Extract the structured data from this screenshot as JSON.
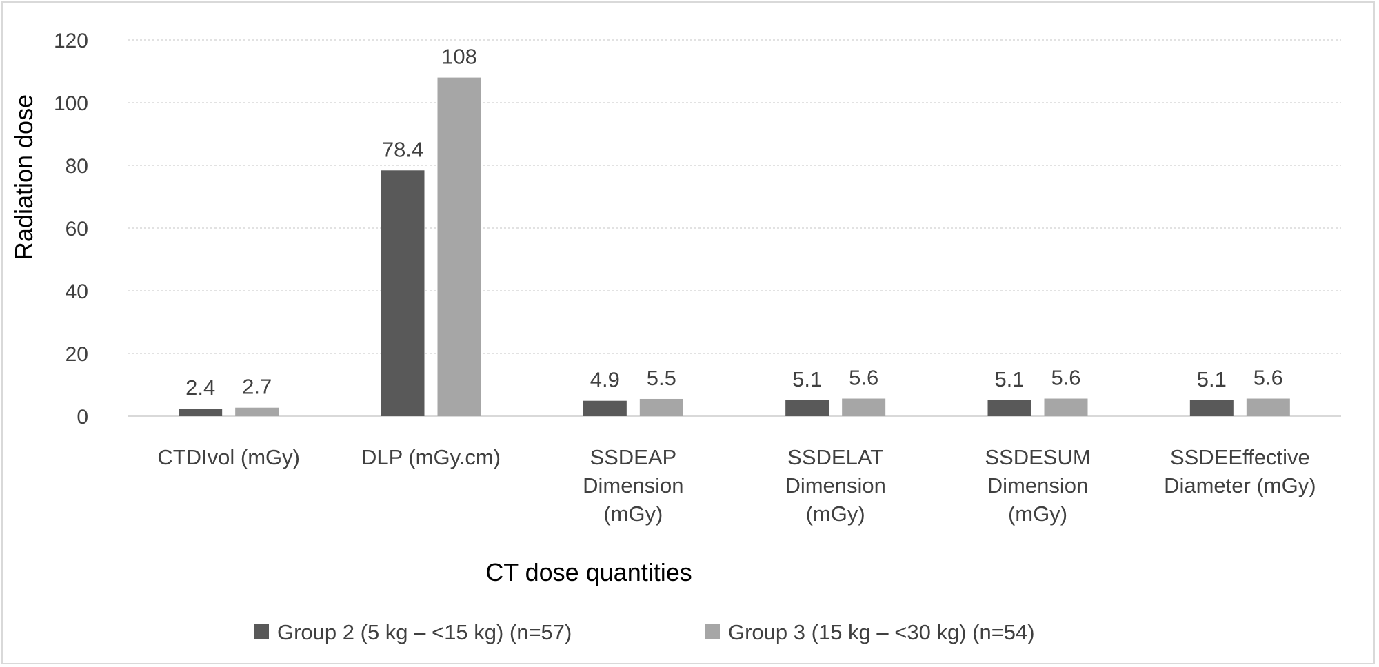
{
  "chart_data": {
    "type": "bar",
    "title": "",
    "xlabel": "CT dose quantities",
    "ylabel": "Radiation dose",
    "ylim": [
      0,
      120
    ],
    "yticks": [
      0,
      20,
      40,
      60,
      80,
      100,
      120
    ],
    "grid": true,
    "legend_position": "bottom",
    "categories": [
      [
        "CTDIvol (mGy)"
      ],
      [
        "DLP (mGy.cm)"
      ],
      [
        "SSDEAP",
        "Dimension",
        "(mGy)"
      ],
      [
        "SSDELAT",
        "Dimension",
        "(mGy)"
      ],
      [
        "SSDESUM",
        "Dimension",
        "(mGy)"
      ],
      [
        "SSDEEffective",
        "Diameter (mGy)"
      ]
    ],
    "series": [
      {
        "name": "Group 2 (5 kg – <15 kg) (n=57)",
        "color": "#595959",
        "values": [
          2.4,
          78.4,
          4.9,
          5.1,
          5.1,
          5.1
        ],
        "labels": [
          "2.4",
          "78.4",
          "4.9",
          "5.1",
          "5.1",
          "5.1"
        ]
      },
      {
        "name": "Group 3 (15 kg – <30 kg) (n=54)",
        "color": "#a6a6a6",
        "values": [
          2.7,
          108,
          5.5,
          5.6,
          5.6,
          5.6
        ],
        "labels": [
          "2.7",
          "108",
          "5.5",
          "5.6",
          "5.6",
          "5.6"
        ]
      }
    ]
  }
}
